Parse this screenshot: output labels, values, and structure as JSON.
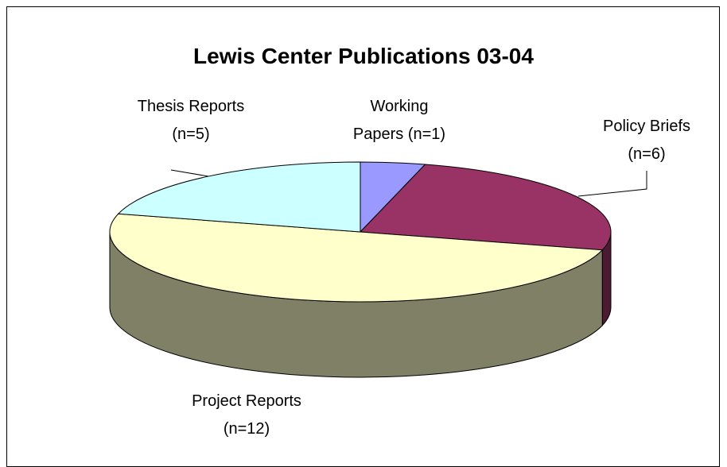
{
  "chart_data": {
    "type": "pie",
    "title": "Lewis Center Publications 03-04",
    "categories": [
      "Working Papers (n=1)",
      "Policy Briefs (n=6)",
      "Project Reports (n=12)",
      "Thesis Reports (n=5)"
    ],
    "values": [
      1,
      6,
      12,
      5
    ],
    "colors": [
      "#9999ff",
      "#993366",
      "#ffffcc",
      "#ccffff"
    ]
  }
}
